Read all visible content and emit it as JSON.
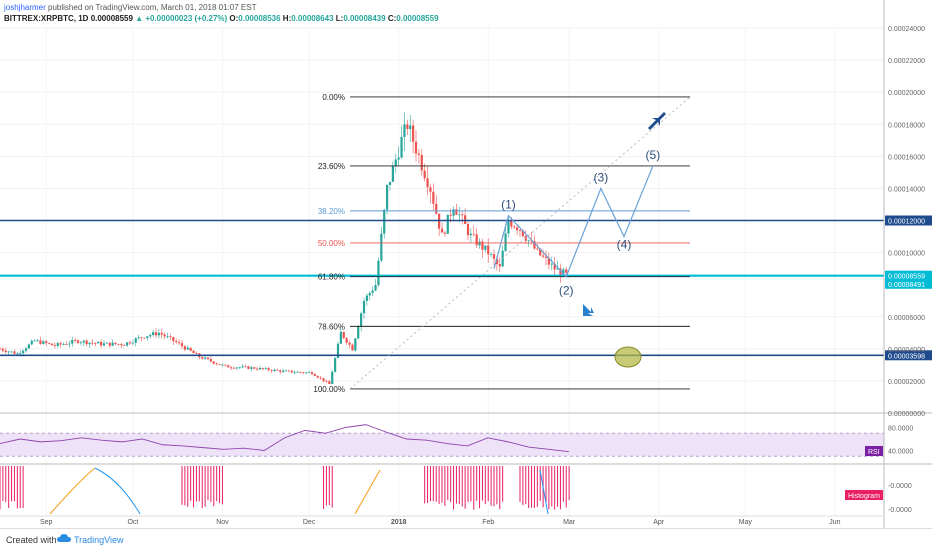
{
  "header": {
    "author": "joshjharmer",
    "published": "published on TradingView.com, March 01, 2018 01:07 EST",
    "symbol": "BITTREX:XRPBTC, 1D",
    "last": "0.00008559",
    "change": "▲ +0.00000023 (+0.27%)",
    "ohlc": [
      {
        "k": "O:",
        "v": "0.00008536"
      },
      {
        "k": "H:",
        "v": "0.00008643"
      },
      {
        "k": "L:",
        "v": "0.00008439"
      },
      {
        "k": "C:",
        "v": "0.00008559"
      }
    ]
  },
  "footer": {
    "created": "Created with",
    "brand": "TradingView"
  },
  "colors": {
    "up": "#26a69a",
    "down": "#ef5350",
    "level": "#1e4b8c",
    "current": "#00bcd4",
    "wave": "#6aa0d8",
    "rsi": "#8e44ad",
    "histogram": "#e91e63"
  },
  "chart_data": [
    {
      "type": "candlestick",
      "symbol": "XRPBTC",
      "timeframe": "1D",
      "x_tick_labels": [
        "Sep",
        "Oct",
        "Nov",
        "Dec",
        "2018",
        "Feb",
        "Mar",
        "Apr",
        "May",
        "Jun"
      ],
      "y_tick_labels": [
        "0.00024000",
        "0.00022000",
        "0.00020000",
        "0.00018000",
        "0.00016000",
        "0.00014000",
        "0.00010000",
        "0.00006000",
        "0.00004000",
        "0.00002000",
        "0.00000000"
      ],
      "ylim": [
        0,
        0.00024
      ],
      "price_path": [
        [
          "2017-08-16",
          4e-05
        ],
        [
          "2017-08-22",
          3.7e-05
        ],
        [
          "2017-08-28",
          4.5e-05
        ],
        [
          "2017-09-04",
          4.2e-05
        ],
        [
          "2017-09-12",
          4.5e-05
        ],
        [
          "2017-09-20",
          4.3e-05
        ],
        [
          "2017-09-28",
          4.3e-05
        ],
        [
          "2017-10-05",
          4.8e-05
        ],
        [
          "2017-10-10",
          5e-05
        ],
        [
          "2017-10-16",
          4.4e-05
        ],
        [
          "2017-10-24",
          3.5e-05
        ],
        [
          "2017-11-02",
          2.9e-05
        ],
        [
          "2017-11-12",
          2.8e-05
        ],
        [
          "2017-11-22",
          2.6e-05
        ],
        [
          "2017-12-02",
          2.5e-05
        ],
        [
          "2017-12-08",
          1.8e-05
        ],
        [
          "2017-12-12",
          5e-05
        ],
        [
          "2017-12-16",
          4e-05
        ],
        [
          "2017-12-20",
          7e-05
        ],
        [
          "2017-12-24",
          8e-05
        ],
        [
          "2017-12-28",
          0.00014
        ],
        [
          "2018-01-02",
          0.00017
        ],
        [
          "2018-01-04",
          0.00018
        ],
        [
          "2018-01-08",
          0.00016
        ],
        [
          "2018-01-12",
          0.00014
        ],
        [
          "2018-01-16",
          0.00011
        ],
        [
          "2018-01-20",
          0.00013
        ],
        [
          "2018-01-26",
          0.00011
        ],
        [
          "2018-02-01",
          0.0001
        ],
        [
          "2018-02-05",
          9e-05
        ],
        [
          "2018-02-08",
          0.00012
        ],
        [
          "2018-02-12",
          0.000115
        ],
        [
          "2018-02-18",
          0.0001
        ],
        [
          "2018-02-24",
          9e-05
        ],
        [
          "2018-03-01",
          8.5e-05
        ]
      ],
      "horizontal_levels": [
        {
          "label": "0.00012000",
          "value": 0.00012
        },
        {
          "label": "0.00008559",
          "value": 8.559e-05
        },
        {
          "label": "0.00008491",
          "value": 8.491e-05
        },
        {
          "label": "0.00003598",
          "value": 3.598e-05
        }
      ],
      "fibonacci": [
        {
          "label": "0.00%",
          "value": 0.000197
        },
        {
          "label": "23.60%",
          "value": 0.000154
        },
        {
          "label": "38.20%",
          "value": 0.000126
        },
        {
          "label": "50.00%",
          "value": 0.000106
        },
        {
          "label": "61.80%",
          "value": 8.5e-05
        },
        {
          "label": "78.60%",
          "value": 5.4e-05
        },
        {
          "label": "100.00%",
          "value": 1.5e-05
        }
      ],
      "elliott_waves": [
        {
          "label": "(1)",
          "date": "2018-02-08",
          "value": 0.000123
        },
        {
          "label": "(2)",
          "date": "2018-02-28",
          "value": 8.5e-05
        },
        {
          "label": "(3)",
          "date": "2018-03-12",
          "value": 0.00014
        },
        {
          "label": "(4)",
          "date": "2018-03-20",
          "value": 0.00011
        },
        {
          "label": "(5)",
          "date": "2018-03-30",
          "value": 0.000154
        }
      ]
    },
    {
      "type": "line",
      "name": "RSI",
      "tick_labels": [
        "80.0000",
        "40.0000"
      ],
      "values": [
        52,
        60,
        55,
        57,
        62,
        58,
        55,
        60,
        50,
        48,
        45,
        42,
        44,
        40,
        62,
        75,
        70,
        80,
        85,
        72,
        60,
        58,
        52,
        48,
        62,
        55,
        46,
        42,
        38
      ]
    },
    {
      "type": "bar",
      "name": "Histogram",
      "tick_labels": [
        "-0.0000",
        "-0.0000"
      ],
      "bars": [
        {
          "from": "2017-08-16",
          "to": "2017-08-24"
        },
        {
          "from": "2017-10-18",
          "to": "2017-11-01"
        },
        {
          "from": "2017-12-06",
          "to": "2017-12-09"
        },
        {
          "from": "2018-01-10",
          "to": "2018-02-06"
        },
        {
          "from": "2018-02-12",
          "to": "2018-03-01"
        }
      ]
    }
  ]
}
